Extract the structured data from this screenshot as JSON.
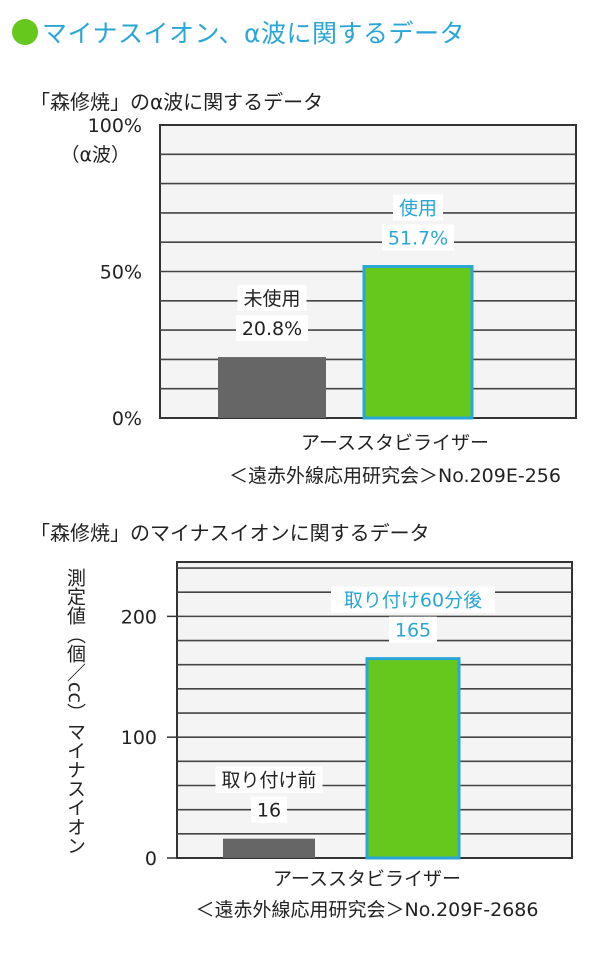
{
  "header": {
    "title": "マイナスイオン、α波に関するデータ",
    "dot_color": "#66c81c",
    "title_color": "#2aa6d6"
  },
  "colors": {
    "used": "#66c81c",
    "unused": "#666666",
    "highlight_border": "#2aa6d6",
    "gridline": "#444444"
  },
  "chart_data": [
    {
      "type": "bar",
      "title": "「森修焼」のα波に関するデータ",
      "ylabel": "（α波）",
      "ylim": [
        0,
        100
      ],
      "yticks": [
        {
          "value": 0,
          "label": "0%"
        },
        {
          "value": 50,
          "label": "50%"
        },
        {
          "value": 100,
          "label": "100%"
        }
      ],
      "grid_step": 10,
      "categories": [
        "未使用",
        "使用"
      ],
      "values": [
        20.8,
        51.7
      ],
      "value_labels": [
        "20.8%",
        "51.7%"
      ],
      "bar_colors": [
        "#666666",
        "#66c81c"
      ],
      "source_line1": "アーススタビライザー",
      "source_line2": "＜遠赤外線応用研究会＞No.209E-256"
    },
    {
      "type": "bar",
      "title": "「森修焼」のマイナスイオンに関するデータ",
      "ylabel": "測定値（個／cc）マイナスイオン",
      "ylim": [
        0,
        245
      ],
      "yticks": [
        {
          "value": 0,
          "label": "0"
        },
        {
          "value": 100,
          "label": "100"
        },
        {
          "value": 200,
          "label": "200"
        }
      ],
      "grid_step": 20,
      "categories": [
        "取り付け前",
        "取り付け60分後"
      ],
      "values": [
        16,
        165
      ],
      "value_labels": [
        "16",
        "165"
      ],
      "bar_colors": [
        "#666666",
        "#66c81c"
      ],
      "source_line1": "アーススタビライザー",
      "source_line2": "＜遠赤外線応用研究会＞No.209F-2686"
    }
  ]
}
